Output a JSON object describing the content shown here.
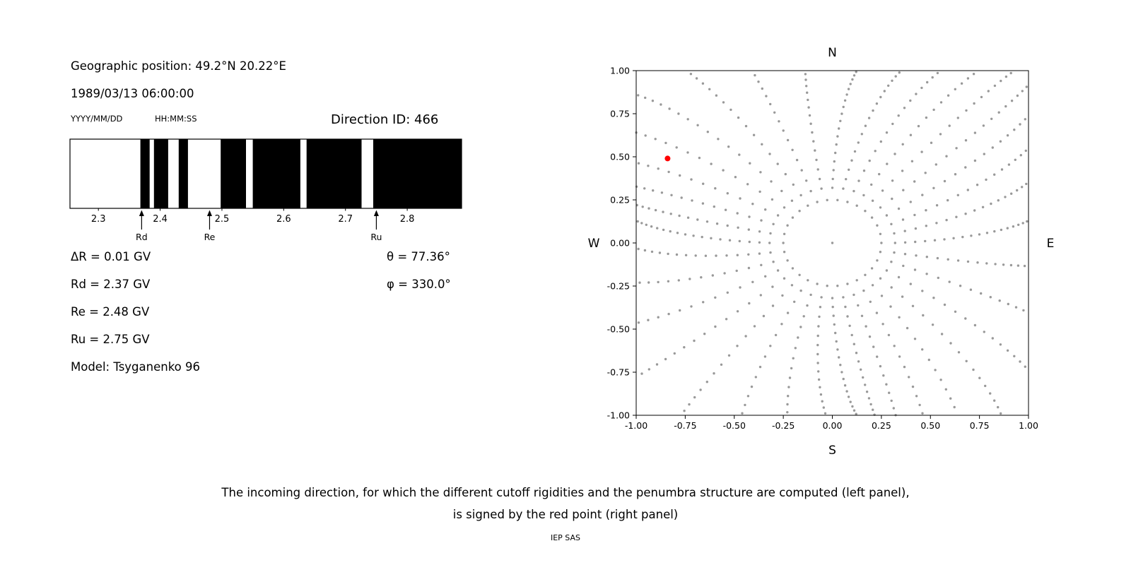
{
  "left_panel": {
    "geo_position": "Geographic position: 49.2°N 20.22°E",
    "datetime": "1989/03/13 06:00:00",
    "date_format_label": "YYYY/MM/DD",
    "time_format_label": "HH:MM:SS",
    "direction_id": "Direction ID: 466",
    "params": [
      "ΔR = 0.01 GV",
      "Rd = 2.37 GV",
      "Re = 2.48 GV",
      "Ru = 2.75 GV",
      "Model: Tsyganenko 96"
    ],
    "angles": [
      "θ = 77.36°",
      "φ = 330.0°"
    ]
  },
  "caption": {
    "line1": "The incoming direction, for which the different cutoff rigidities and the penumbra structure are computed (left panel),",
    "line2": "is signed by the red point (right panel)",
    "credit": "IEP SAS"
  },
  "colors": {
    "band": "#000000",
    "dots": "#999999",
    "selected": "#ff0000"
  },
  "chart_data": [
    {
      "type": "bar",
      "title": "",
      "xlabel": "",
      "ylabel": "",
      "xlim": [
        2.254,
        2.888
      ],
      "x_ticks": [
        "2.3",
        "2.4",
        "2.5",
        "2.6",
        "2.7",
        "2.8"
      ],
      "black_bands_gv": [
        [
          2.368,
          2.383
        ],
        [
          2.39,
          2.413
        ],
        [
          2.43,
          2.445
        ],
        [
          2.498,
          2.539
        ],
        [
          2.55,
          2.627
        ],
        [
          2.637,
          2.726
        ],
        [
          2.745,
          2.888
        ]
      ],
      "cutoff_markers": [
        {
          "label": "Rd",
          "value_gv": 2.37
        },
        {
          "label": "Re",
          "value_gv": 2.48
        },
        {
          "label": "Ru",
          "value_gv": 2.75
        }
      ]
    },
    {
      "type": "scatter",
      "title": "",
      "xlabel": "",
      "ylabel": "",
      "xlim": [
        -1.0,
        1.0
      ],
      "ylim": [
        -1.0,
        1.0
      ],
      "grid": false,
      "x_ticks": [
        "-1.00",
        "-0.75",
        "-0.50",
        "-0.25",
        "0.00",
        "0.25",
        "0.50",
        "0.75",
        "1.00"
      ],
      "y_ticks": [
        "1.00",
        "0.75",
        "0.50",
        "0.25",
        "0.00",
        "-0.25",
        "-0.50",
        "-0.75",
        "-1.00"
      ],
      "compass_labels": {
        "top": "N",
        "bottom": "S",
        "left": "W",
        "right": "E"
      },
      "series": [
        {
          "name": "asymptotic-direction-dots",
          "color": "#999999",
          "marker_size": 1.7,
          "generator": {
            "n_spokes": 36,
            "r_inner": 0.32,
            "r_outer_base": 1.0,
            "r_outer_diag_boost": 0.35,
            "dots_per_spoke": 18,
            "curvature_deg_max": 10,
            "inner_ring_radius": 0.25,
            "inner_ring_dots": 30,
            "center_dot": true
          }
        },
        {
          "name": "selected-incoming-direction",
          "color": "#ff0000",
          "marker_size": 4,
          "points": [
            [
              -0.84,
              0.49
            ]
          ]
        }
      ]
    }
  ]
}
